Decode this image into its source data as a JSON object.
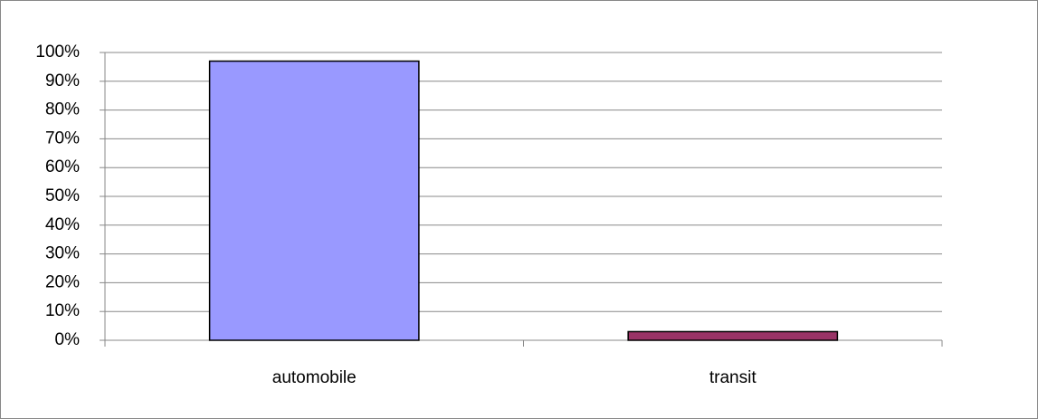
{
  "chart_data": {
    "type": "bar",
    "categories": [
      "automobile",
      "transit"
    ],
    "values": [
      97,
      3
    ],
    "colors": [
      "#9999ff",
      "#993366"
    ],
    "ylim": [
      0,
      100
    ],
    "yticks": [
      {
        "value": 0,
        "label": "0%"
      },
      {
        "value": 10,
        "label": "10%"
      },
      {
        "value": 20,
        "label": "20%"
      },
      {
        "value": 30,
        "label": "30%"
      },
      {
        "value": 40,
        "label": "40%"
      },
      {
        "value": 50,
        "label": "50%"
      },
      {
        "value": 60,
        "label": "60%"
      },
      {
        "value": 70,
        "label": "70%"
      },
      {
        "value": 80,
        "label": "80%"
      },
      {
        "value": 90,
        "label": "90%"
      },
      {
        "value": 100,
        "label": "100%"
      }
    ],
    "grid": true
  }
}
